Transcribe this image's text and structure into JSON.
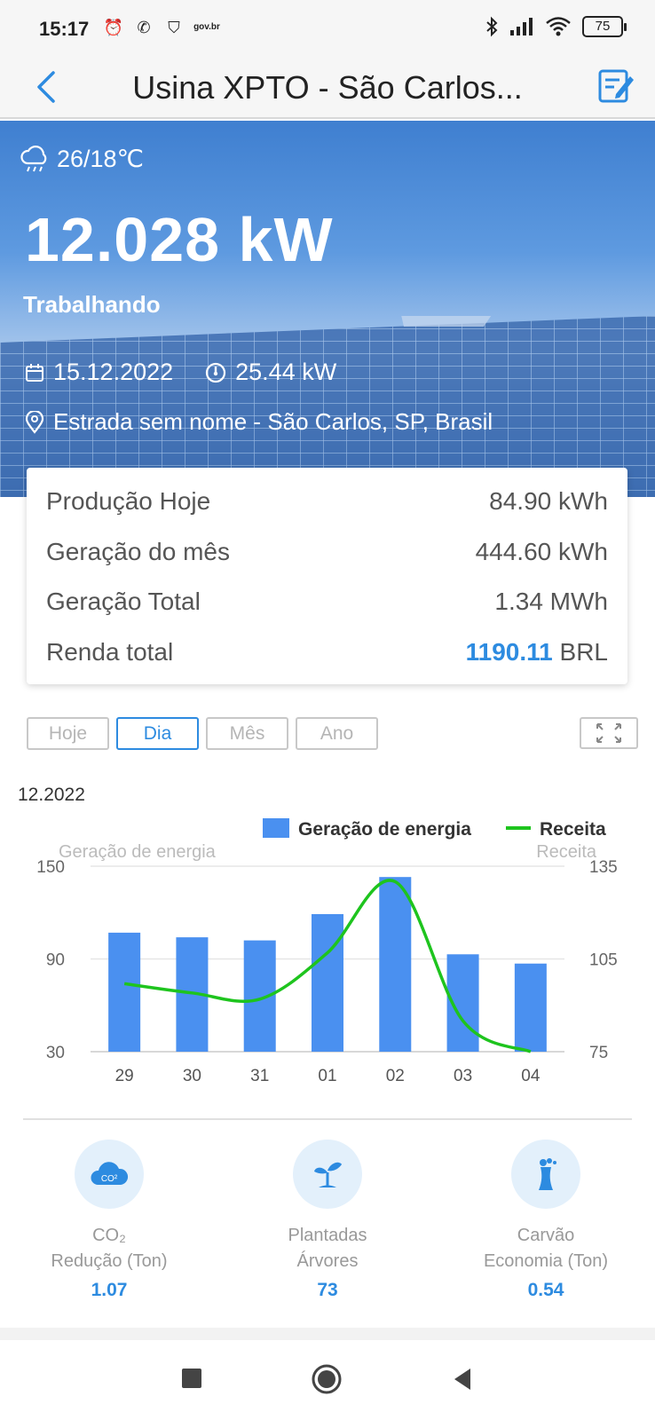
{
  "status_bar": {
    "time": "15:17",
    "govbr": "gov.br",
    "battery": "75"
  },
  "header": {
    "title": "Usina XPTO - São Carlos..."
  },
  "hero": {
    "weather": "26/18℃",
    "power": "12.028 kW",
    "status": "Trabalhando",
    "date": "15.12.2022",
    "capacity": "25.44 kW",
    "address": "Estrada sem nome - São Carlos, SP, Brasil"
  },
  "stats": [
    {
      "label": "Produção Hoje",
      "value": "84.90 kWh"
    },
    {
      "label": "Geração do mês",
      "value": "444.60 kWh"
    },
    {
      "label": "Geração Total",
      "value": "1.34 MWh"
    }
  ],
  "income": {
    "label": "Renda total",
    "value": "1190.11",
    "unit": "BRL"
  },
  "tabs": [
    {
      "label": "Hoje",
      "active": false
    },
    {
      "label": "Dia",
      "active": true
    },
    {
      "label": "Mês",
      "active": false
    },
    {
      "label": "Ano",
      "active": false
    }
  ],
  "chart_period": "12.2022",
  "chart_data": {
    "type": "bar",
    "categories": [
      "29",
      "30",
      "31",
      "01",
      "02",
      "03",
      "04"
    ],
    "series": [
      {
        "name": "Geração de energia",
        "type": "bar",
        "axis": "left",
        "color": "#4a90f0",
        "values": [
          107,
          104,
          102,
          119,
          143,
          93,
          87
        ]
      },
      {
        "name": "Receita",
        "type": "line",
        "axis": "right",
        "color": "#1ec41e",
        "values": [
          97,
          94,
          92,
          107,
          130,
          85,
          75
        ]
      }
    ],
    "ylabel": "Geração de energia",
    "y2label": "Receita",
    "ylim": [
      30,
      150
    ],
    "y2lim": [
      75,
      135
    ],
    "yticks": [
      30,
      90,
      150
    ],
    "y2ticks": [
      75,
      105,
      135
    ],
    "legend": "top-right",
    "grid": true
  },
  "eco": [
    {
      "icon": "co2-cloud-icon",
      "line1": "CO₂",
      "line2": "Redução (Ton)",
      "value": "1.07"
    },
    {
      "icon": "seedling-icon",
      "line1": "Plantadas",
      "line2": "Árvores",
      "value": "73"
    },
    {
      "icon": "power-plant-icon",
      "line1": "Carvão",
      "line2": "Economia (Ton)",
      "value": "0.54"
    }
  ],
  "colors": {
    "accent": "#2d8be0",
    "bar": "#4a90f0",
    "line": "#1ec41e"
  }
}
